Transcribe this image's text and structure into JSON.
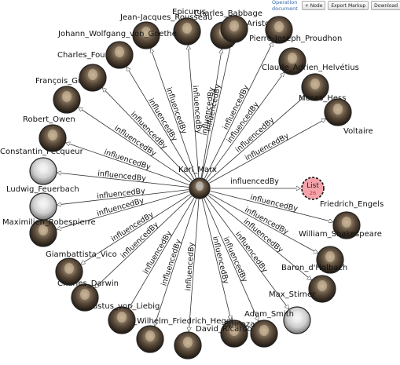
{
  "toolbar": {
    "doc_link": "Operation document",
    "node_button": "+ Node",
    "export_button": "Export Markup",
    "download_button": "Download"
  },
  "center": {
    "name": "Karl_Marx"
  },
  "edge_label": "influencedBy",
  "list_node": {
    "label": "List",
    "count": "26",
    "color": "#f4a3ab"
  },
  "nodes": [
    {
      "name": "Jean-Jacques_Rousseau"
    },
    {
      "name": "Epicurus"
    },
    {
      "name": "Charles_Babbage"
    },
    {
      "name": "Aristotle"
    },
    {
      "name": "Pierre-Joseph_Proudhon"
    },
    {
      "name": "Claude_Adrien_Helvétius"
    },
    {
      "name": "Moses_Hess"
    },
    {
      "name": "Voltaire"
    },
    {
      "name": "Friedrich_Engels"
    },
    {
      "name": "William_Shakespeare"
    },
    {
      "name": "Baron_d'Holbach"
    },
    {
      "name": "Max_Stirner"
    },
    {
      "name": "Adam_Smith"
    },
    {
      "name": "Spinoza"
    },
    {
      "name": "David_Ricardo"
    },
    {
      "name": "Georg_Wilhelm_Friedrich_Hegel"
    },
    {
      "name": "Justus_von_Liebig"
    },
    {
      "name": "Charles_Darwin"
    },
    {
      "name": "Giambattista_Vico"
    },
    {
      "name": "Maximilien_Robespierre"
    },
    {
      "name": "Ludwig_Feuerbach"
    },
    {
      "name": "Constantin_Pecqueur"
    },
    {
      "name": "Robert_Owen"
    },
    {
      "name": "François_Guizot"
    },
    {
      "name": "Charles_Fourier"
    },
    {
      "name": "Johann_Wolfgang_von_Goethe"
    }
  ]
}
